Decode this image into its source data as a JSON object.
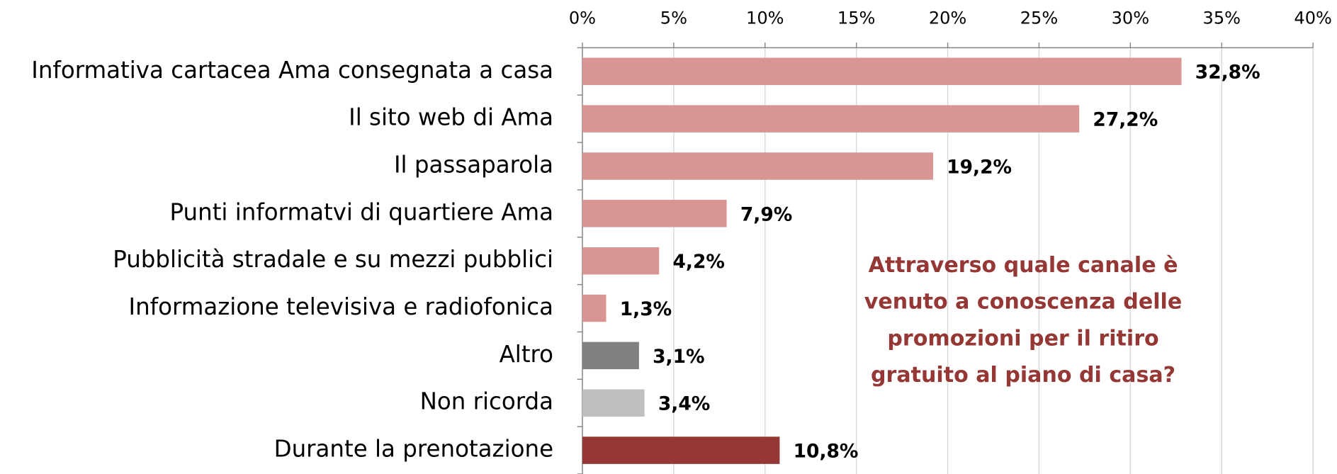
{
  "chart_data": {
    "type": "barh",
    "categories": [
      "Informativa cartacea Ama consegnata a casa",
      "Il sito web di Ama",
      "Il passaparola",
      "Punti informatvi di quartiere Ama",
      "Pubblicità stradale e su mezzi pubblici",
      "Informazione televisiva e radiofonica",
      "Altro",
      "Non ricorda",
      "Durante la prenotazione"
    ],
    "values": [
      32.8,
      27.2,
      19.2,
      7.9,
      4.2,
      1.3,
      3.1,
      3.4,
      10.8
    ],
    "value_labels": [
      "32,8%",
      "27,2%",
      "19,2%",
      "7,9%",
      "4,2%",
      "1,3%",
      "3,1%",
      "3,4%",
      "10,8%"
    ],
    "colors": [
      "#d99594",
      "#d99594",
      "#d99594",
      "#d99594",
      "#d99594",
      "#d99594",
      "#808080",
      "#bfbfbf",
      "#953735"
    ],
    "xlim": [
      0,
      40
    ],
    "xticks": [
      {
        "value": 0,
        "label": "0%"
      },
      {
        "value": 5,
        "label": "5%"
      },
      {
        "value": 10,
        "label": "10%"
      },
      {
        "value": 15,
        "label": "15%"
      },
      {
        "value": 20,
        "label": "20%"
      },
      {
        "value": 25,
        "label": "25%"
      },
      {
        "value": 30,
        "label": "30%"
      },
      {
        "value": 35,
        "label": "35%"
      },
      {
        "value": 40,
        "label": "40%"
      }
    ],
    "grid": true,
    "annotation": [
      "Attraverso quale canale è",
      "venuto a conoscenza delle",
      "promozioni per il ritiro",
      "gratuito al piano di casa?"
    ],
    "annotation_color": "#953735"
  }
}
